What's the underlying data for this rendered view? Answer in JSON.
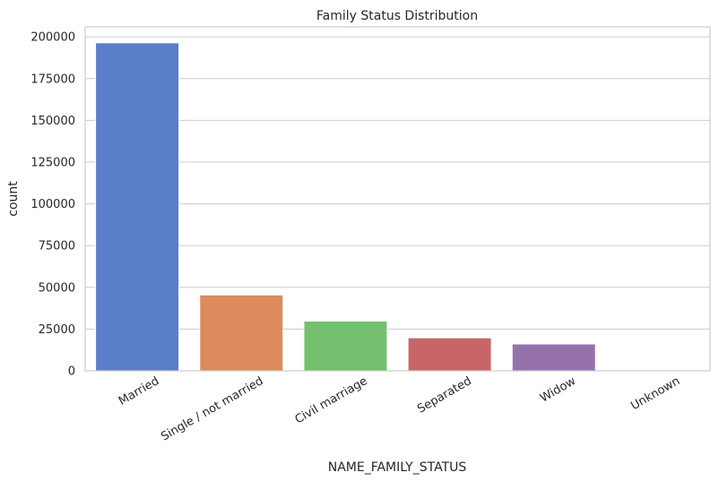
{
  "chart_data": {
    "type": "bar",
    "title": "Family Status Distribution",
    "xlabel": "NAME_FAMILY_STATUS",
    "ylabel": "count",
    "categories": [
      "Married",
      "Single / not married",
      "Civil marriage",
      "Separated",
      "Widow",
      "Unknown"
    ],
    "values": [
      196432,
      45444,
      29775,
      19770,
      16088,
      2
    ],
    "colors": [
      "#5a7ec8",
      "#dd8a5c",
      "#73c06e",
      "#c96566",
      "#9672ad",
      "#8c6d5c"
    ],
    "ylim": [
      0,
      206000
    ],
    "yticks": [
      0,
      25000,
      50000,
      75000,
      100000,
      125000,
      150000,
      175000,
      200000
    ],
    "grid": "horizontal",
    "legend": "none"
  }
}
